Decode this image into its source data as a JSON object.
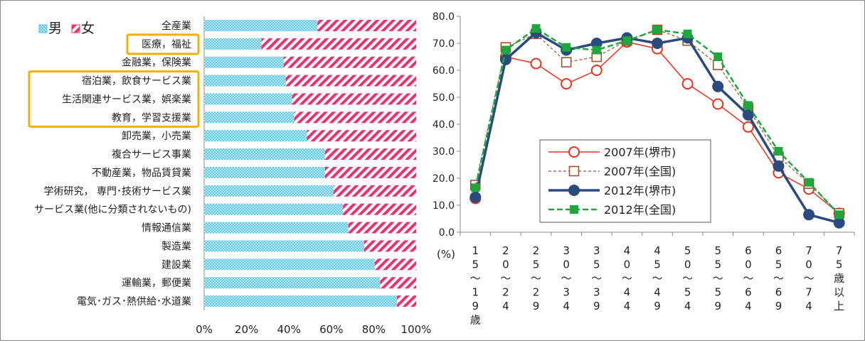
{
  "chart_data": [
    {
      "type": "bar",
      "stacked": true,
      "orientation": "horizontal",
      "legend": {
        "placement": "top-left",
        "items": [
          "男",
          "女"
        ]
      },
      "series_colors": {
        "男": "#52c5f2",
        "女": "#e8336e"
      },
      "categories": [
        "全産業",
        "医療，福祉",
        "金融業，保険業",
        "宿泊業，飲食サービス業",
        "生活関連サービス業，娯楽業",
        "教育，学習支援業",
        "卸売業，小売業",
        "複合サービス事業",
        "不動産業，物品賃貸業",
        "学術研究， 専門･技術サービス業",
        "サービス業(他に分類されないもの)",
        "情報通信業",
        "製造業",
        "建設業",
        "運輸業，郵便業",
        "電気･ガス･熱供給･水道業"
      ],
      "series": [
        {
          "name": "男",
          "values": [
            53.5,
            27,
            37.5,
            38.5,
            41.5,
            42.5,
            48.5,
            57,
            57,
            61,
            65.5,
            68,
            75.5,
            80.5,
            83,
            91
          ]
        },
        {
          "name": "女",
          "values": [
            46.5,
            73,
            62.5,
            61.5,
            58.5,
            57.5,
            51.5,
            43,
            43,
            39,
            34.5,
            32,
            24.5,
            19.5,
            17,
            9
          ]
        }
      ],
      "highlighted": [
        "医療，福祉",
        "宿泊業，飲食サービス業",
        "生活関連サービス業，娯楽業",
        "教育，学習支援業"
      ],
      "highlight_color": "#f0b000",
      "xlim": [
        0,
        100
      ],
      "x_ticks": [
        "0%",
        "20%",
        "40%",
        "60%",
        "80%",
        "100%"
      ],
      "grid": false
    },
    {
      "type": "line",
      "ylim": [
        0,
        80
      ],
      "y_ticks": [
        "0.0",
        "10.0",
        "20.0",
        "30.0",
        "40.0",
        "50.0",
        "60.0",
        "70.0",
        "80.0"
      ],
      "y_unit": "(%)",
      "categories": [
        "15～19歳",
        "20～24",
        "25～29",
        "30～34",
        "35～39",
        "40～44",
        "45～49",
        "50～54",
        "55～59",
        "60～64",
        "65～69",
        "70～74",
        "75歳以上"
      ],
      "legend": {
        "placement": "center"
      },
      "grid": false,
      "series": [
        {
          "name": "2007年(堺市)",
          "color": "#e8321e",
          "values": [
            12.5,
            65,
            62.5,
            55,
            60,
            70.5,
            68,
            55,
            47.5,
            39,
            22,
            16,
            7
          ]
        },
        {
          "name": "2007年(全国)",
          "color": "#a0522d",
          "values": [
            17.5,
            68.5,
            73.5,
            63,
            65,
            71,
            75,
            71,
            62,
            46,
            28,
            18,
            7
          ]
        },
        {
          "name": "2012年(堺市)",
          "color": "#2b4a7e",
          "values": [
            13,
            64,
            74,
            67.5,
            70,
            72,
            70,
            72,
            54,
            43.5,
            24.5,
            6.5,
            3.5
          ]
        },
        {
          "name": "2012年(全国)",
          "color": "#1ea83c",
          "values": [
            16.5,
            67.5,
            75.5,
            68.5,
            67.5,
            71,
            75,
            73.5,
            65,
            47,
            30,
            18.5,
            6.5
          ]
        }
      ]
    }
  ]
}
